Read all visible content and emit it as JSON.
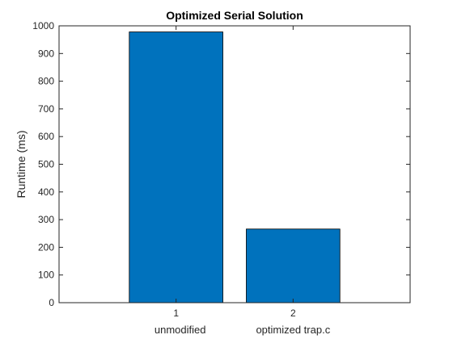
{
  "chart_data": {
    "type": "bar",
    "title": "Optimized Serial Solution",
    "xlabel": "",
    "ylabel": "Runtime (ms)",
    "categories": [
      "1",
      "2"
    ],
    "category_labels": [
      "unmodified",
      "optimized trap.c"
    ],
    "values": [
      978,
      266
    ],
    "xlim": [
      0,
      3
    ],
    "ylim": [
      0,
      1000
    ],
    "yticks": [
      0,
      100,
      200,
      300,
      400,
      500,
      600,
      700,
      800,
      900,
      1000
    ],
    "bar_color": "#0072BD",
    "grid": false,
    "legend": "none"
  }
}
